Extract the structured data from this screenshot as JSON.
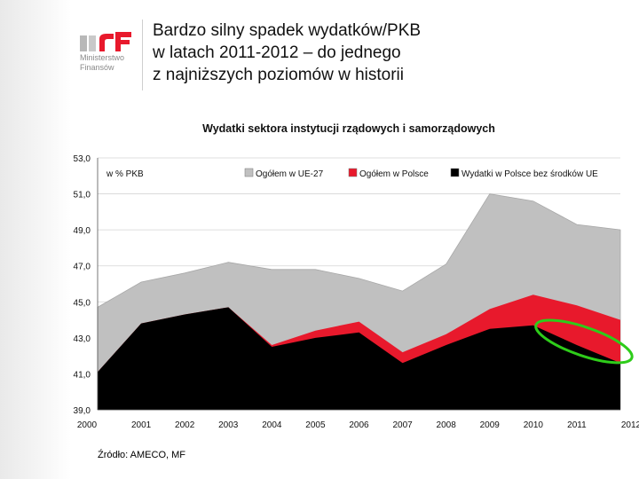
{
  "header": {
    "logo_text_line1": "Ministerstwo",
    "logo_text_line2": "Finansów",
    "title_lines": [
      "Bardzo silny spadek wydatków/PKB",
      "w latach 2011-2012 – do jednego",
      "z najniższych poziomów w historii"
    ]
  },
  "chart_data": {
    "type": "area",
    "title": "Wydatki sektora instytucji rządowych i samorządowych",
    "unit_label": "w % PKB",
    "x": [
      "2000",
      "2001",
      "2002",
      "2003",
      "2004",
      "2005",
      "2006",
      "2007",
      "2008",
      "2009",
      "2010",
      "2011",
      "2012"
    ],
    "ylim": [
      39.0,
      53.0
    ],
    "yticks": [
      "39,0",
      "41,0",
      "43,0",
      "45,0",
      "47,0",
      "49,0",
      "51,0",
      "53,0"
    ],
    "grid": true,
    "legend_position": "top",
    "series": [
      {
        "name": "Ogółem w UE-27",
        "color": "#c0c0c0",
        "values": [
          44.7,
          46.1,
          46.6,
          47.2,
          46.8,
          46.8,
          46.3,
          45.6,
          47.1,
          51.0,
          50.6,
          49.3,
          49.0
        ]
      },
      {
        "name": "Ogółem w Polsce",
        "color": "#e8192c",
        "values": [
          41.1,
          43.8,
          44.3,
          44.7,
          42.6,
          43.4,
          43.9,
          42.2,
          43.2,
          44.6,
          45.4,
          44.8,
          44.0
        ]
      },
      {
        "name": "Wydatki w Polsce bez środków UE",
        "color": "#000000",
        "values": [
          41.1,
          43.8,
          44.3,
          44.7,
          42.5,
          43.0,
          43.3,
          41.6,
          42.6,
          43.5,
          43.7,
          42.6,
          41.6
        ]
      }
    ],
    "highlight": {
      "shape": "ellipse",
      "color": "#2ecc1a",
      "x_from": "2010",
      "x_to": "2012"
    }
  },
  "source": "Źródło: AMECO, MF"
}
